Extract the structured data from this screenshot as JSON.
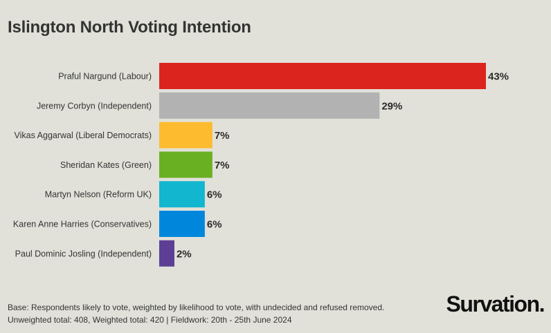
{
  "title": "Islington North Voting Intention",
  "chart_data": {
    "type": "bar",
    "orientation": "horizontal",
    "title": "Islington North Voting Intention",
    "xlabel": "",
    "ylabel": "",
    "xlim": [
      0,
      43
    ],
    "grid": false,
    "legend": "none",
    "categories": [
      "Praful Nargund (Labour)",
      "Jeremy Corbyn (Independent)",
      "Vikas Aggarwal (Liberal Democrats)",
      "Sheridan Kates (Green)",
      "Martyn Nelson (Reform UK)",
      "Karen Anne Harries (Conservatives)",
      "Paul Dominic Josling (Independent)"
    ],
    "values": [
      43,
      29,
      7,
      7,
      6,
      6,
      2
    ],
    "value_labels": [
      "43%",
      "29%",
      "7%",
      "7%",
      "6%",
      "6%",
      "2%"
    ],
    "colors": [
      "#dc241f",
      "#b2b2b2",
      "#fdbb30",
      "#6ab023",
      "#12b6cf",
      "#0087dc",
      "#5c3f94"
    ]
  },
  "footer": {
    "base": "Base: Respondents likely to vote, weighted by likelihood to vote, with undecided and refused removed.",
    "totals": "Unweighted total: 408, Weighted total: 420 | Fieldwork: 20th - 25th June 2024"
  },
  "brand": "Survation."
}
